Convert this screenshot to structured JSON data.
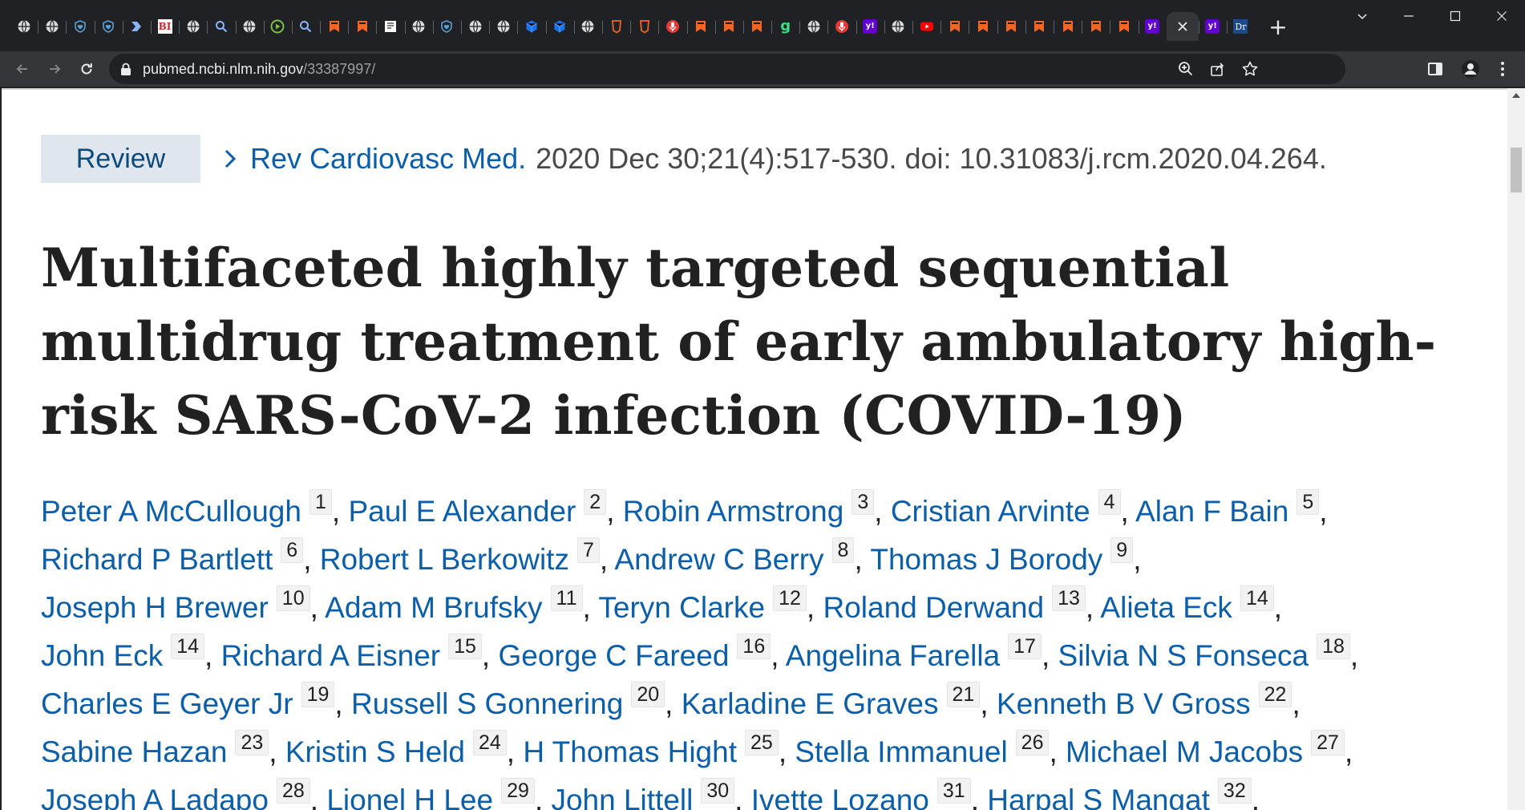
{
  "browser": {
    "tabs": [
      {
        "icon": "globe-icon",
        "color": "#dadce0"
      },
      {
        "icon": "globe-icon",
        "color": "#dadce0"
      },
      {
        "icon": "heart-shield-icon",
        "color": "#5aa0d8"
      },
      {
        "icon": "heart-shield-icon",
        "color": "#5aa0d8"
      },
      {
        "icon": "arrow-flag-icon",
        "color": "#8ab4f8"
      },
      {
        "icon": "bi-logo-icon",
        "color": "#c62828",
        "text": "BI"
      },
      {
        "icon": "globe-icon",
        "color": "#dadce0"
      },
      {
        "icon": "search-icon",
        "color": "#8ab4f8"
      },
      {
        "icon": "globe-icon",
        "color": "#dadce0"
      },
      {
        "icon": "play-circle-icon",
        "color": "#7bc043"
      },
      {
        "icon": "search-icon",
        "color": "#8ab4f8"
      },
      {
        "icon": "bookmark-ribbon-icon",
        "color": "#f26522"
      },
      {
        "icon": "bookmark-ribbon-icon",
        "color": "#f26522"
      },
      {
        "icon": "newspaper-icon",
        "color": "#ffffff"
      },
      {
        "icon": "globe-icon",
        "color": "#dadce0"
      },
      {
        "icon": "heart-shield-icon",
        "color": "#5aa0d8"
      },
      {
        "icon": "globe-icon",
        "color": "#dadce0"
      },
      {
        "icon": "globe-icon",
        "color": "#dadce0"
      },
      {
        "icon": "cube-icon",
        "color": "#1a73e8"
      },
      {
        "icon": "cube-icon",
        "color": "#1a73e8"
      },
      {
        "icon": "globe-icon",
        "color": "#dadce0"
      },
      {
        "icon": "shield-outline-icon",
        "color": "#f26522"
      },
      {
        "icon": "shield-outline-icon",
        "color": "#f26522"
      },
      {
        "icon": "microphone-icon",
        "color": "#e53935"
      },
      {
        "icon": "bookmark-ribbon-icon",
        "color": "#f26522"
      },
      {
        "icon": "bookmark-ribbon-icon",
        "color": "#f26522"
      },
      {
        "icon": "bookmark-ribbon-icon",
        "color": "#f26522"
      },
      {
        "icon": "g-logo-icon",
        "color": "#3ddc84",
        "text": "g"
      },
      {
        "icon": "globe-icon",
        "color": "#dadce0"
      },
      {
        "icon": "microphone-icon",
        "color": "#e53935"
      },
      {
        "icon": "yahoo-icon",
        "color": "#6001d2",
        "text": "y!"
      },
      {
        "icon": "globe-icon",
        "color": "#dadce0"
      },
      {
        "icon": "youtube-icon",
        "color": "#ff0000"
      },
      {
        "icon": "bookmark-ribbon-icon",
        "color": "#f26522"
      },
      {
        "icon": "bookmark-ribbon-icon",
        "color": "#f26522"
      },
      {
        "icon": "bookmark-ribbon-icon",
        "color": "#f26522"
      },
      {
        "icon": "bookmark-ribbon-icon",
        "color": "#f26522"
      },
      {
        "icon": "bookmark-ribbon-icon",
        "color": "#f26522"
      },
      {
        "icon": "bookmark-ribbon-icon",
        "color": "#f26522"
      },
      {
        "icon": "bookmark-ribbon-icon",
        "color": "#f26522"
      },
      {
        "icon": "yahoo-icon",
        "color": "#6001d2",
        "text": "y!"
      },
      {
        "icon": "close-icon",
        "color": "#e8eaed",
        "active": true
      },
      {
        "icon": "yahoo-icon",
        "color": "#6001d2",
        "text": "y!"
      },
      {
        "icon": "dr-logo-icon",
        "color": "#1e4a8c",
        "text": "Dr"
      }
    ],
    "url_host": "pubmed.ncbi.nlm.nih.gov",
    "url_path": "/33387997/"
  },
  "article": {
    "type_badge": "Review",
    "journal": "Rev Cardiovasc Med.",
    "citation": "2020 Dec 30;21(4):517-530. doi: 10.31083/j.rcm.2020.04.264.",
    "title": "Multifaceted highly targeted sequential multidrug treatment of early ambulatory high-risk SARS-CoV-2 infection (COVID-19)",
    "authors": [
      {
        "name": "Peter A McCullough",
        "aff": "1"
      },
      {
        "name": "Paul E Alexander",
        "aff": "2"
      },
      {
        "name": "Robin Armstrong",
        "aff": "3"
      },
      {
        "name": "Cristian Arvinte",
        "aff": "4"
      },
      {
        "name": "Alan F Bain",
        "aff": "5"
      },
      {
        "name": "Richard P Bartlett",
        "aff": "6"
      },
      {
        "name": "Robert L Berkowitz",
        "aff": "7"
      },
      {
        "name": "Andrew C Berry",
        "aff": "8"
      },
      {
        "name": "Thomas J Borody",
        "aff": "9"
      },
      {
        "name": "Joseph H Brewer",
        "aff": "10"
      },
      {
        "name": "Adam M Brufsky",
        "aff": "11"
      },
      {
        "name": "Teryn Clarke",
        "aff": "12"
      },
      {
        "name": "Roland Derwand",
        "aff": "13"
      },
      {
        "name": "Alieta Eck",
        "aff": "14"
      },
      {
        "name": "John Eck",
        "aff": "14"
      },
      {
        "name": "Richard A Eisner",
        "aff": "15"
      },
      {
        "name": "George C Fareed",
        "aff": "16"
      },
      {
        "name": "Angelina Farella",
        "aff": "17"
      },
      {
        "name": "Silvia N S Fonseca",
        "aff": "18"
      },
      {
        "name": "Charles E Geyer Jr",
        "aff": "19"
      },
      {
        "name": "Russell S Gonnering",
        "aff": "20"
      },
      {
        "name": "Karladine E Graves",
        "aff": "21"
      },
      {
        "name": "Kenneth B V Gross",
        "aff": "22"
      },
      {
        "name": "Sabine Hazan",
        "aff": "23"
      },
      {
        "name": "Kristin S Held",
        "aff": "24"
      },
      {
        "name": "H Thomas Hight",
        "aff": "25"
      },
      {
        "name": "Stella Immanuel",
        "aff": "26"
      },
      {
        "name": "Michael M Jacobs",
        "aff": "27"
      },
      {
        "name": "Joseph A Ladapo",
        "aff": "28"
      },
      {
        "name": "Lionel H Lee",
        "aff": "29"
      },
      {
        "name": "John Littell",
        "aff": "30"
      },
      {
        "name": "Ivette Lozano",
        "aff": "31"
      },
      {
        "name": "Harpal S Mangat",
        "aff": "32"
      }
    ],
    "author_line_breaks_after": [
      4,
      8,
      13,
      18,
      22,
      27
    ]
  }
}
